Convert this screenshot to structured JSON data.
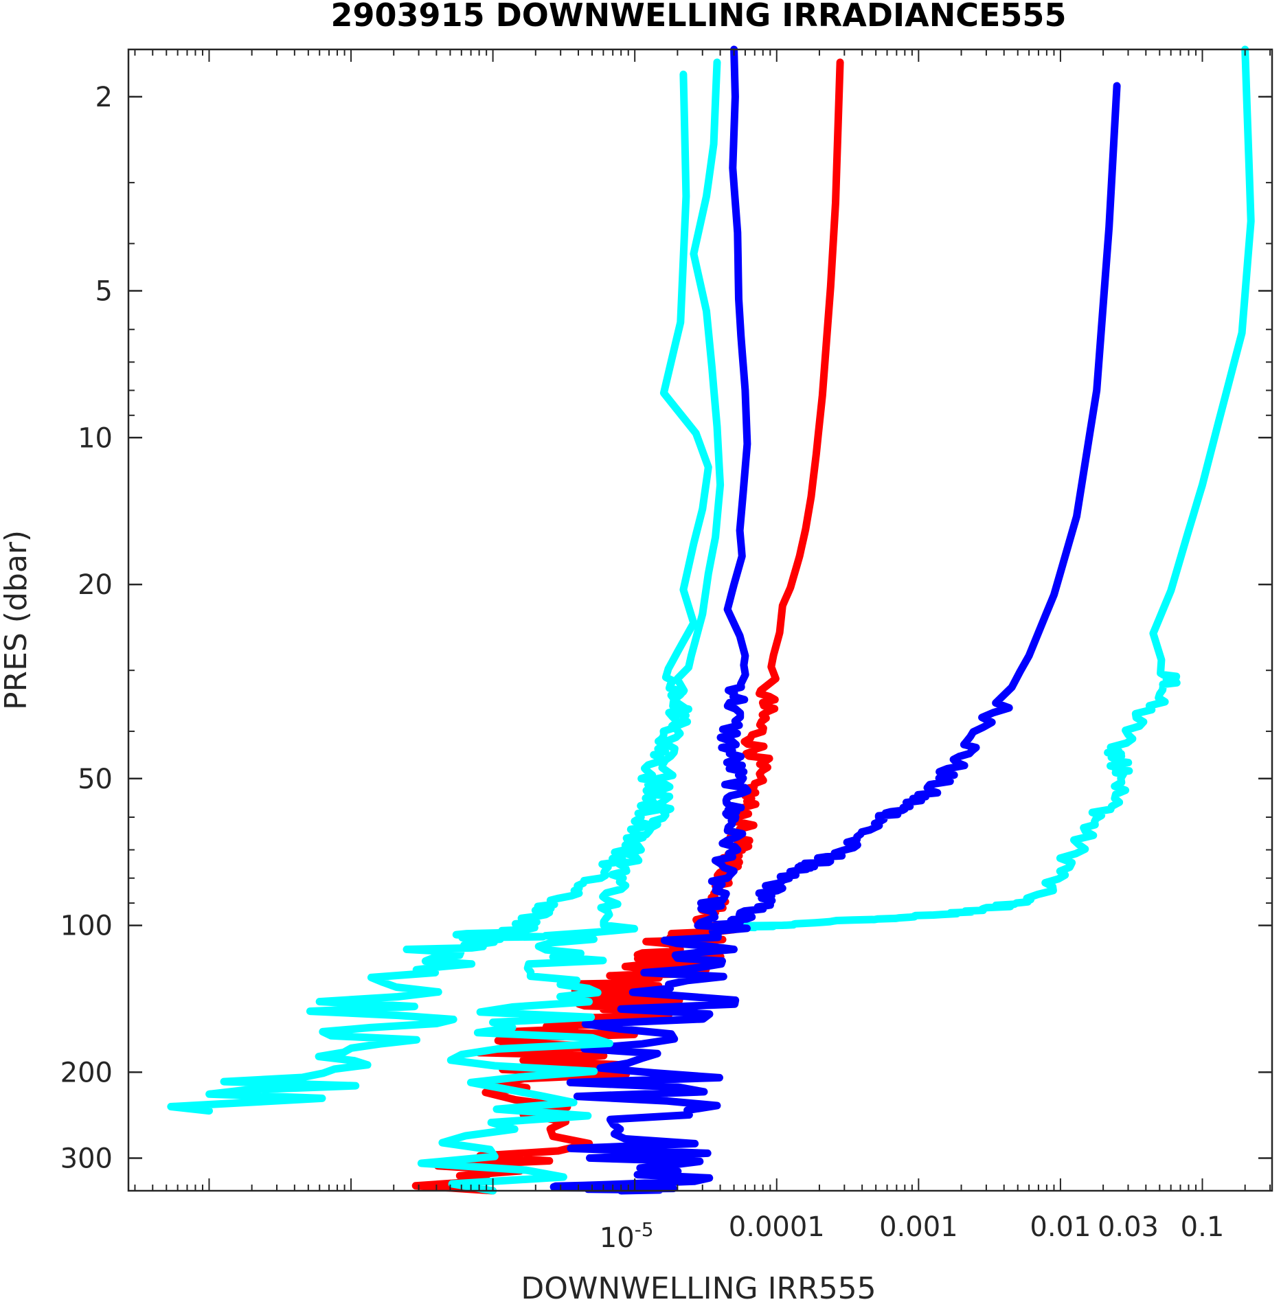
{
  "chart_data": {
    "type": "line",
    "title": "2903915  DOWNWELLING IRRADIANCE555",
    "xlabel": "DOWNWELLING IRR555",
    "ylabel": "PRES (dbar)",
    "x_scale": "log",
    "y_scale": "log",
    "y_reversed": true,
    "xlim": [
      2.7e-09,
      0.31
    ],
    "ylim": [
      1.6,
      350
    ],
    "x_ticks": [
      {
        "value": 1e-05,
        "label": "10",
        "exp": "-5"
      },
      {
        "value": 0.0001,
        "label": "0.0001"
      },
      {
        "value": 0.001,
        "label": "0.001"
      },
      {
        "value": 0.01,
        "label": "0.01"
      },
      {
        "value": 0.03,
        "label": "0.03"
      },
      {
        "value": 0.1,
        "label": "0.1"
      }
    ],
    "y_ticks": [
      {
        "value": 2,
        "label": "2"
      },
      {
        "value": 5,
        "label": "5"
      },
      {
        "value": 10,
        "label": "10"
      },
      {
        "value": 20,
        "label": "20"
      },
      {
        "value": 50,
        "label": "50"
      },
      {
        "value": 100,
        "label": "100"
      },
      {
        "value": 200,
        "label": "200"
      },
      {
        "value": 300,
        "label": "300"
      }
    ],
    "grid": false,
    "legend": "none",
    "colors": {
      "cyan": "#00ffff",
      "blue": "#0000ff",
      "red": "#ff0000",
      "axis": "#262626"
    },
    "series": [
      {
        "color": "cyan",
        "x": [
          0.2,
          0.22,
          0.19,
          0.13,
          0.1,
          0.08,
          0.06,
          0.045,
          0.055,
          0.06,
          0.035,
          0.025,
          0.025,
          0.03,
          0.022,
          0.015,
          0.011,
          0.0065,
          0.0035,
          0.0015,
          0.0005,
          0.00015,
          7e-05
        ],
        "y": [
          1.6,
          3.6,
          6.1,
          9.3,
          12.5,
          15.5,
          20.6,
          25.2,
          30.4,
          32.3,
          37.5,
          44,
          46,
          49,
          57,
          64,
          76,
          88,
          92,
          95,
          97,
          99,
          101
        ]
      },
      {
        "color": "blue",
        "x": [
          0.025,
          0.022,
          0.018,
          0.013,
          0.009,
          0.006,
          0.004,
          0.0025,
          0.0018,
          0.0012,
          0.0008,
          0.0006,
          0.0004,
          0.00025,
          0.00018,
          0.00013,
          0.0001,
          8e-05,
          5.5e-05,
          4e-05
        ],
        "y": [
          1.9,
          3.7,
          8.0,
          14.5,
          21,
          28,
          35,
          42,
          47,
          53,
          57,
          60,
          65,
          72,
          75,
          77,
          82,
          90,
          97,
          100
        ]
      },
      {
        "color": "red",
        "x": [
          0.00028,
          0.00026,
          0.00024,
          0.00021,
          0.00019,
          0.000175,
          0.00016,
          0.000145,
          0.000125,
          0.00011,
          0.000105,
          9.5e-05,
          8.5e-05,
          8e-05,
          7e-05,
          7.5e-05,
          6.5e-05,
          6e-05,
          5.5e-05,
          5e-05,
          4.5e-05,
          4.2e-05,
          3.5e-05,
          3e-05,
          2.5e-05,
          2e-05,
          1.5e-05,
          1e-05,
          7e-06,
          6e-06,
          5e-06,
          4e-06,
          3e-06,
          2e-06,
          1.4e-06,
          1e-06
        ],
        "y": [
          1.7,
          3.3,
          4.9,
          8.2,
          10.8,
          13.2,
          15.4,
          17.5,
          20.3,
          22.1,
          25.1,
          27.9,
          33,
          37,
          42,
          46,
          52,
          58,
          67,
          72,
          78,
          86,
          93,
          102,
          110,
          118,
          125,
          130,
          135,
          140,
          150,
          165,
          185,
          220,
          290,
          350
        ]
      },
      {
        "color": "blue",
        "x": [
          5e-05,
          5.1e-05,
          4.9e-05,
          5.3e-05,
          5.4e-05,
          5.6e-05,
          6e-05,
          6.2e-05,
          5.8e-05,
          5.5e-05,
          5.7e-05,
          5e-05,
          4.5e-05,
          5.5e-05,
          6e-05,
          5.6e-05,
          5e-05,
          4.6e-05,
          5e-05,
          5.2e-05,
          4.8e-05,
          5e-05,
          4.7e-05,
          4e-05,
          3.5e-05,
          3e-05,
          2.4e-05,
          2e-05,
          1.6e-05,
          1.4e-05,
          1.2e-05,
          1.1e-05,
          1e-05,
          9e-06,
          8e-06
        ],
        "y": [
          1.6,
          2.0,
          2.8,
          3.8,
          5.2,
          6.2,
          8.0,
          10.3,
          13,
          15.5,
          17.5,
          20,
          22.5,
          25.5,
          28,
          32,
          36,
          42,
          47,
          53,
          58,
          62,
          70,
          80,
          90,
          100,
          112,
          125,
          145,
          175,
          210,
          250,
          300,
          340,
          350
        ]
      },
      {
        "color": "cyan",
        "x": [
          3.8e-05,
          3.6e-05,
          3.2e-05,
          2.6e-05,
          3.2e-05,
          3.5e-05,
          3.8e-05,
          4e-05,
          3.7e-05,
          3.3e-05,
          3e-05,
          2.5e-05,
          2.2e-05,
          2e-05,
          1.8e-05,
          1.5e-05,
          1.2e-05,
          1e-05,
          8e-06,
          6.5e-06,
          5e-06,
          4e-06,
          3e-06,
          2.2e-06,
          1.6e-06,
          1.2e-06,
          1e-06
        ],
        "y": [
          1.7,
          2.5,
          3.2,
          4.2,
          5.5,
          7.2,
          9.5,
          12.5,
          16,
          19,
          23,
          28,
          33,
          39,
          45,
          52,
          60,
          70,
          80,
          92,
          105,
          120,
          140,
          170,
          210,
          270,
          350
        ]
      },
      {
        "color": "cyan",
        "x": [
          2.2e-05,
          2.3e-05,
          2.1e-05,
          1.6e-05,
          2.7e-05,
          3.3e-05,
          3e-05,
          2.6e-05,
          2.2e-05,
          2.6e-05,
          2e-05,
          1.6e-05,
          2.2e-05,
          1.9e-05,
          1.5e-05,
          1.3e-05,
          1.6e-05,
          1.2e-05,
          8e-06,
          5e-06,
          3e-06,
          2e-06,
          1.5e-06,
          1e-06,
          5e-07,
          3e-07,
          2e-07,
          1e-07,
          5e-08,
          1e-08
        ],
        "y": [
          1.8,
          3.2,
          5.8,
          8.1,
          9.8,
          11.5,
          14,
          16.5,
          20.5,
          24,
          27.5,
          31,
          35.5,
          40,
          44,
          50,
          56,
          63,
          72,
          80,
          88,
          95,
          102,
          106,
          112,
          125,
          150,
          175,
          205,
          240
        ]
      }
    ],
    "note_series_style": "noisy deep-water traces drawn with generated jitter around the listed paths"
  }
}
